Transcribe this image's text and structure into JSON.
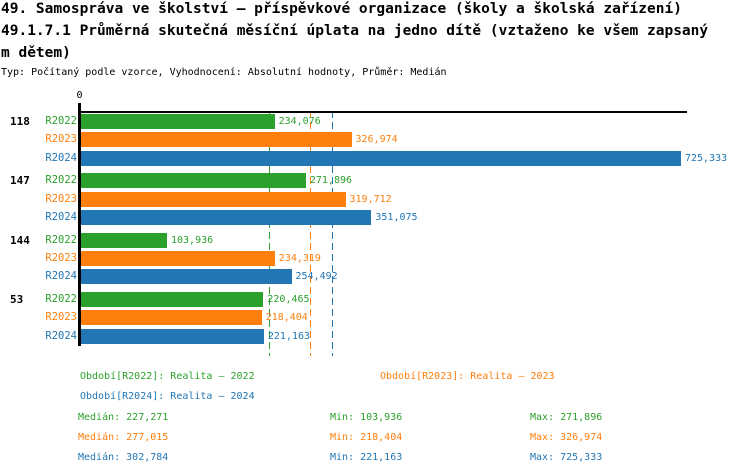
{
  "header": {
    "title_line1": "49. Samospráva ve školství – příspěvkové organizace (školy a školská zařízení)",
    "title_line2": "49.1.7.1 Průměrná skutečná měsíční úplata na jedno dítě (vztaženo ke všem zapsaný",
    "title_line3": "m dětem)",
    "subtitle": "Typ: Počítaný podle vzorce, Vyhodnocení: Absolutní hodnoty, Průměr: Medián"
  },
  "colors": {
    "R2022": "#2ca02c",
    "R2023": "#ff7f0e",
    "R2024": "#2276b4",
    "axis": "#000000"
  },
  "chart_data": {
    "type": "bar",
    "orientation": "horizontal",
    "x_axis": {
      "origin_label": "0",
      "xlim": [
        0,
        733000
      ]
    },
    "series": [
      "R2022",
      "R2023",
      "R2024"
    ],
    "groups": [
      {
        "label": "118",
        "bars": [
          {
            "series": "R2022",
            "value": 234076,
            "display": "234,076"
          },
          {
            "series": "R2023",
            "value": 326974,
            "display": "326,974"
          },
          {
            "series": "R2024",
            "value": 725333,
            "display": "725,333"
          }
        ]
      },
      {
        "label": "147",
        "bars": [
          {
            "series": "R2022",
            "value": 271896,
            "display": "271,896"
          },
          {
            "series": "R2023",
            "value": 319712,
            "display": "319,712"
          },
          {
            "series": "R2024",
            "value": 351075,
            "display": "351,075"
          }
        ]
      },
      {
        "label": "144",
        "bars": [
          {
            "series": "R2022",
            "value": 103936,
            "display": "103,936"
          },
          {
            "series": "R2023",
            "value": 234319,
            "display": "234,319"
          },
          {
            "series": "R2024",
            "value": 254492,
            "display": "254,492"
          }
        ]
      },
      {
        "label": "53",
        "bars": [
          {
            "series": "R2022",
            "value": 220465,
            "display": "220,465"
          },
          {
            "series": "R2023",
            "value": 218404,
            "display": "218,404"
          },
          {
            "series": "R2024",
            "value": 221163,
            "display": "221,163"
          }
        ]
      }
    ],
    "median_gridlines": [
      {
        "series": "R2022",
        "value": 227271
      },
      {
        "series": "R2023",
        "value": 277015
      },
      {
        "series": "R2024",
        "value": 302784
      }
    ]
  },
  "legend": [
    {
      "series": "R2022",
      "label": "Období[R2022]: Realita – 2022"
    },
    {
      "series": "R2023",
      "label": "Období[R2023]: Realita – 2023"
    },
    {
      "series": "R2024",
      "label": "Období[R2024]: Realita – 2024"
    }
  ],
  "stats": {
    "labels": {
      "median": "Medián:",
      "min": "Min:",
      "max": "Max:"
    },
    "rows": [
      {
        "series": "R2022",
        "median": "227,271",
        "min": "103,936",
        "max": "271,896"
      },
      {
        "series": "R2023",
        "median": "277,015",
        "min": "218,404",
        "max": "326,974"
      },
      {
        "series": "R2024",
        "median": "302,784",
        "min": "221,163",
        "max": "725,333"
      }
    ]
  }
}
